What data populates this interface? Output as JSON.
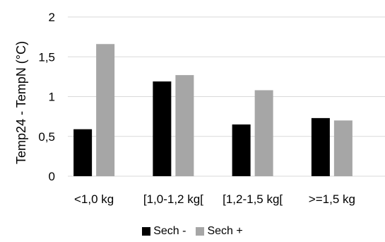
{
  "chart_data": {
    "type": "bar",
    "title": "",
    "xlabel": "",
    "ylabel": "Temp24 - TempN (°C)",
    "ylim": [
      0,
      2
    ],
    "yticks": [
      {
        "value": 0,
        "label": "0"
      },
      {
        "value": 0.5,
        "label": "0,5"
      },
      {
        "value": 1,
        "label": "1"
      },
      {
        "value": 1.5,
        "label": "1,5"
      },
      {
        "value": 2,
        "label": "2"
      }
    ],
    "grid": true,
    "legend_position": "bottom",
    "categories": [
      "<1,0 kg",
      "[1,0-1,2 kg[",
      "[1,2-1,5 kg[",
      ">=1,5 kg"
    ],
    "series": [
      {
        "name": "Sech -",
        "color": "#000000",
        "values": [
          0.59,
          1.19,
          0.65,
          0.73
        ]
      },
      {
        "name": "Sech +",
        "color": "#a6a6a6",
        "values": [
          1.66,
          1.27,
          1.08,
          0.7
        ]
      }
    ]
  }
}
